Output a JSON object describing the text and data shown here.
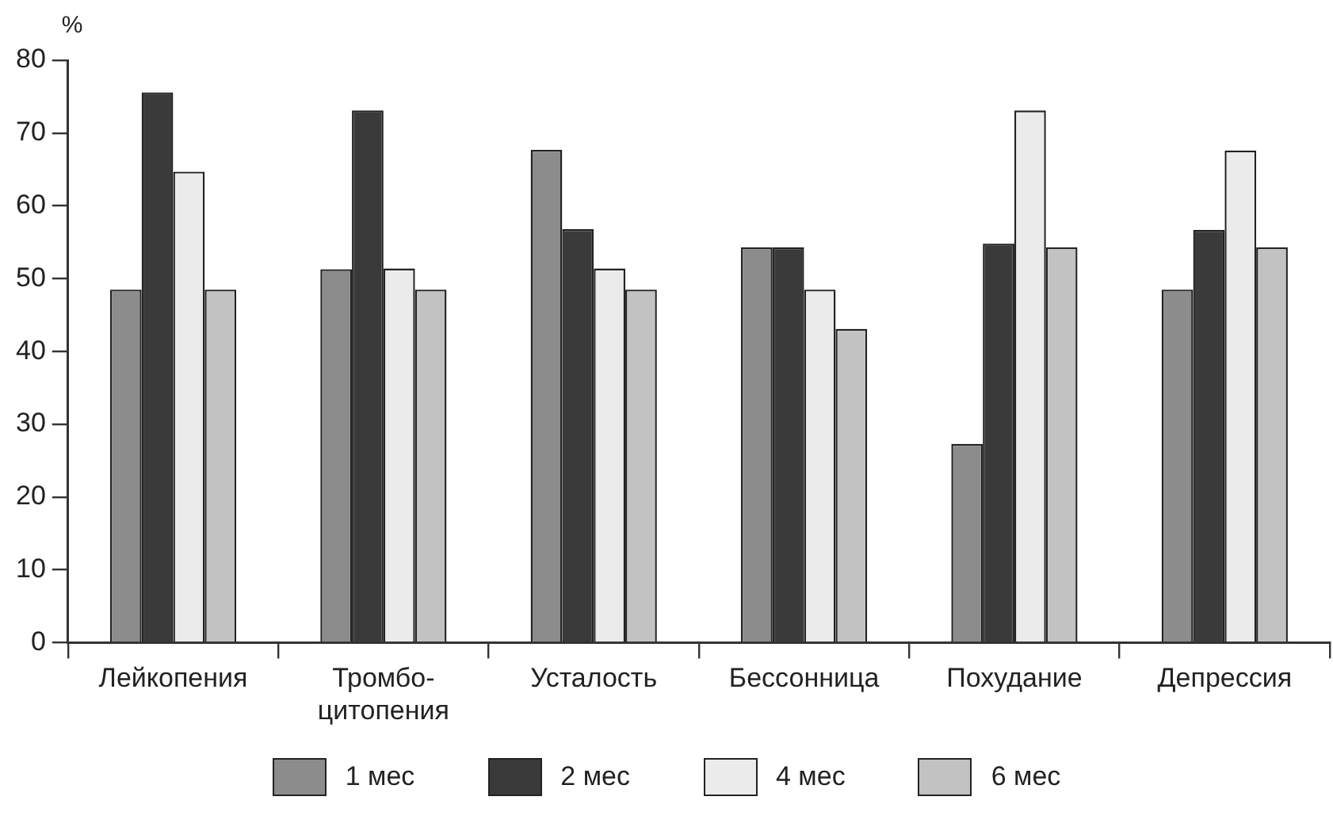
{
  "chart_data": {
    "type": "bar",
    "ylabel": "%",
    "categories": [
      "Лейкопения",
      "Тромбо-\nцитопения",
      "Усталость",
      "Бессонница",
      "Похудание",
      "Депрессия"
    ],
    "series": [
      {
        "name": "1 мес",
        "color": "#8c8c8c",
        "values": [
          48.5,
          51.3,
          67.7,
          54.3,
          27.3,
          48.5
        ]
      },
      {
        "name": "2 мес",
        "color": "#3a3a3a",
        "values": [
          75.6,
          73.1,
          56.8,
          54.3,
          54.8,
          56.7
        ]
      },
      {
        "name": "4 мес",
        "color": "#ebebeb",
        "values": [
          64.7,
          51.4,
          51.4,
          48.5,
          73.1,
          67.6
        ]
      },
      {
        "name": "6 мес",
        "color": "#c2c2c2",
        "values": [
          48.5,
          48.5,
          48.5,
          43.1,
          54.3,
          54.3
        ]
      }
    ],
    "ylim": [
      0,
      80
    ],
    "yticks": [
      0,
      10,
      20,
      30,
      40,
      50,
      60,
      70,
      80
    ],
    "grid": false,
    "legend": "bottom"
  }
}
